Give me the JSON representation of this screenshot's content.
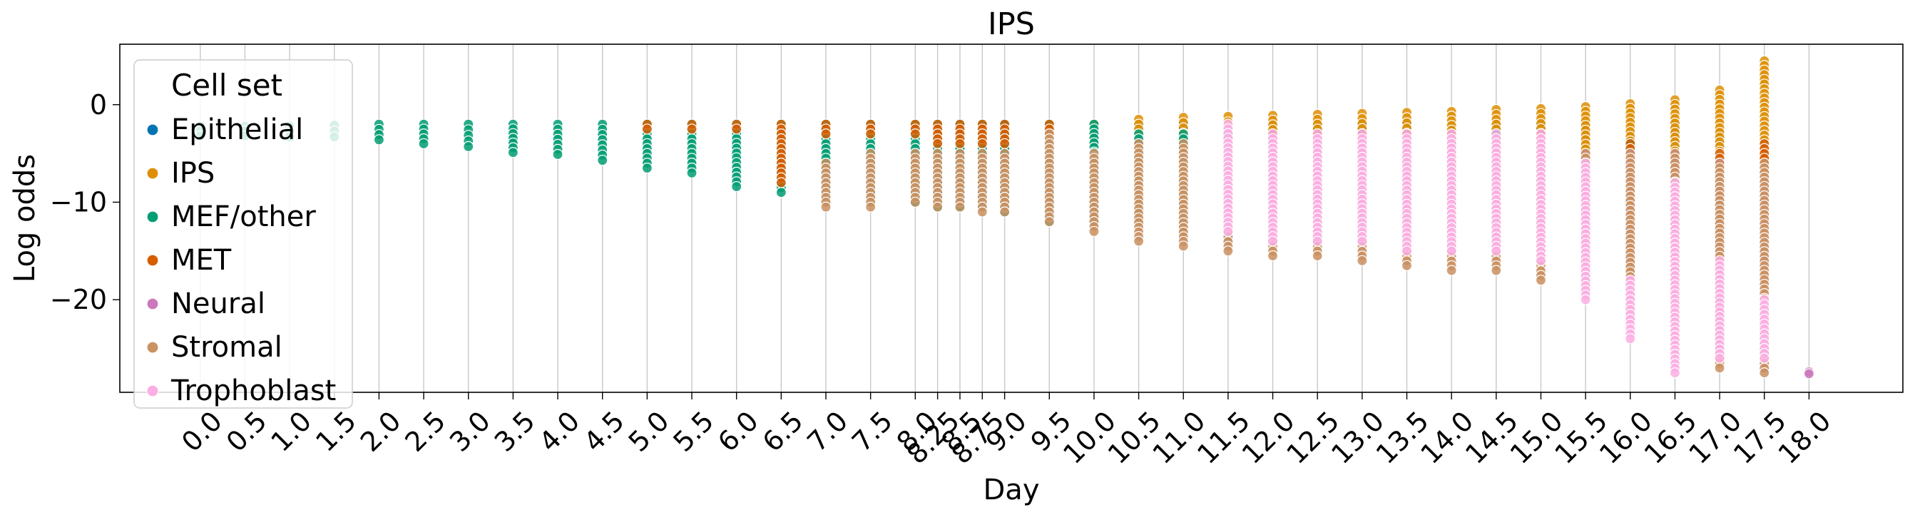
{
  "chart_data": {
    "type": "scatter",
    "title": "IPS",
    "xlabel": "Day",
    "ylabel": "Log odds",
    "xlim": [
      -0.9,
      19.05
    ],
    "ylim": [
      -29.5,
      6.2
    ],
    "grid": "vertical",
    "x_ticks": [
      0.0,
      0.5,
      1.0,
      1.5,
      2.0,
      2.5,
      3.0,
      3.5,
      4.0,
      4.5,
      5.0,
      5.5,
      6.0,
      6.5,
      7.0,
      7.5,
      8.0,
      8.25,
      8.5,
      8.75,
      9.0,
      9.5,
      10.0,
      10.5,
      11.0,
      11.5,
      12.0,
      12.5,
      13.0,
      13.5,
      14.0,
      14.5,
      15.0,
      15.5,
      16.0,
      16.5,
      17.0,
      17.5,
      18.0
    ],
    "x_tick_labels": [
      "0.0",
      "0.5",
      "1.0",
      "1.5",
      "2.0",
      "2.5",
      "3.0",
      "3.5",
      "4.0",
      "4.5",
      "5.0",
      "5.5",
      "6.0",
      "6.5",
      "7.0",
      "7.5",
      "8.0",
      "8.25",
      "8.5",
      "8.75",
      "9.0",
      "9.5",
      "10.0",
      "10.5",
      "11.0",
      "11.5",
      "12.0",
      "12.5",
      "13.0",
      "13.5",
      "14.0",
      "14.5",
      "15.0",
      "15.5",
      "16.0",
      "16.5",
      "17.0",
      "17.5",
      "18.0"
    ],
    "y_ticks": [
      0,
      -10,
      -20
    ],
    "y_tick_labels": [
      "0",
      "−10",
      "−20"
    ],
    "legend": {
      "title": "Cell set",
      "placement": "upper-left",
      "entries": [
        "Epithelial",
        "IPS",
        "MEF/other",
        "MET",
        "Neural",
        "Stromal",
        "Trophoblast"
      ]
    },
    "series": [
      {
        "name": "Epithelial",
        "color": "#0173b2",
        "ranges": [
          [
            6.5,
            -4,
            -3
          ],
          [
            8.5,
            -8,
            -3
          ],
          [
            9.0,
            -10,
            -2
          ],
          [
            9.5,
            -10,
            -3
          ],
          [
            10.0,
            -12,
            -2
          ],
          [
            10.5,
            -12,
            -2
          ],
          [
            11.0,
            -13,
            -2
          ],
          [
            11.5,
            -14,
            -2
          ],
          [
            12.0,
            -14,
            -2
          ],
          [
            12.5,
            -14,
            -2
          ],
          [
            13.0,
            -14,
            -2
          ],
          [
            13.5,
            -15,
            -2
          ],
          [
            14.0,
            -15,
            -2
          ],
          [
            14.5,
            -15,
            -2
          ],
          [
            15.0,
            -16,
            -2
          ],
          [
            15.5,
            -18,
            -2
          ],
          [
            16.0,
            -20,
            -3
          ],
          [
            16.5,
            -22,
            -2
          ],
          [
            17.0,
            -26,
            -3
          ],
          [
            17.5,
            -27,
            -4
          ]
        ]
      },
      {
        "name": "IPS",
        "color": "#de8f05",
        "ranges": [
          [
            9.5,
            -5,
            -2
          ],
          [
            10.0,
            -4,
            -2
          ],
          [
            10.5,
            -4,
            -1.5
          ],
          [
            11.0,
            -4,
            -1.3
          ],
          [
            11.5,
            -4,
            -1.2
          ],
          [
            12.0,
            -4,
            -1.1
          ],
          [
            12.5,
            -4,
            -1
          ],
          [
            13.0,
            -4,
            -0.9
          ],
          [
            13.5,
            -4,
            -0.8
          ],
          [
            14.0,
            -5,
            -0.7
          ],
          [
            14.5,
            -4,
            -0.5
          ],
          [
            15.0,
            -5,
            -0.4
          ],
          [
            15.5,
            -6,
            -0.2
          ],
          [
            16.0,
            -8,
            0.1
          ],
          [
            16.5,
            -10,
            0.5
          ],
          [
            17.0,
            -12,
            1.5
          ],
          [
            17.5,
            -16,
            4.5
          ]
        ]
      },
      {
        "name": "MEF/other",
        "color": "#029e73",
        "ranges": [
          [
            0.0,
            -3.2,
            -2.2
          ],
          [
            0.5,
            -3.2,
            -2.2
          ],
          [
            1.0,
            -3.3,
            -2.2
          ],
          [
            1.5,
            -3.3,
            -2.1
          ],
          [
            2.0,
            -3.6,
            -2
          ],
          [
            2.5,
            -4,
            -2
          ],
          [
            3.0,
            -4.3,
            -2
          ],
          [
            3.5,
            -4.9,
            -2
          ],
          [
            4.0,
            -5.1,
            -2
          ],
          [
            4.5,
            -5.7,
            -2
          ],
          [
            5.0,
            -6.5,
            -2
          ],
          [
            5.5,
            -7,
            -2
          ],
          [
            6.0,
            -8.4,
            -2
          ],
          [
            6.5,
            -9,
            -2
          ],
          [
            7.0,
            -10,
            -2
          ],
          [
            7.5,
            -10,
            -2
          ],
          [
            8.0,
            -10,
            -2
          ],
          [
            8.25,
            -10.5,
            -2
          ],
          [
            8.5,
            -10.5,
            -2
          ],
          [
            8.75,
            -10.5,
            -2
          ],
          [
            9.0,
            -11,
            -2
          ],
          [
            9.5,
            -12,
            -2
          ],
          [
            10.0,
            -12,
            -2
          ],
          [
            10.5,
            -12,
            -3
          ],
          [
            11.0,
            -12,
            -3
          ],
          [
            11.5,
            -13,
            -3
          ],
          [
            12.0,
            -13,
            -3
          ],
          [
            12.5,
            -13,
            -3
          ],
          [
            13.0,
            -13,
            -3
          ],
          [
            13.5,
            -14,
            -3
          ],
          [
            14.0,
            -14,
            -3
          ],
          [
            14.5,
            -14,
            -3
          ],
          [
            15.0,
            -14,
            -3
          ],
          [
            15.5,
            -13,
            -8
          ],
          [
            16.0,
            -18,
            -4
          ],
          [
            16.5,
            -20,
            -6
          ],
          [
            17.0,
            -25,
            -10
          ],
          [
            17.5,
            -24,
            -11
          ]
        ]
      },
      {
        "name": "MET",
        "color": "#d55e00",
        "ranges": [
          [
            5.0,
            -2.5,
            -2
          ],
          [
            5.5,
            -2.5,
            -2
          ],
          [
            6.0,
            -2.5,
            -2
          ],
          [
            6.5,
            -8,
            -2
          ],
          [
            7.0,
            -3,
            -2
          ],
          [
            7.5,
            -3,
            -2
          ],
          [
            8.0,
            -3,
            -2
          ],
          [
            8.25,
            -4,
            -2
          ],
          [
            8.5,
            -4,
            -2
          ],
          [
            8.75,
            -4,
            -2
          ],
          [
            9.0,
            -4,
            -2
          ],
          [
            9.5,
            -3,
            -2
          ],
          [
            12.0,
            -12,
            -3
          ],
          [
            12.5,
            -12,
            -3
          ],
          [
            13.0,
            -12,
            -3
          ],
          [
            13.5,
            -13,
            -3
          ],
          [
            14.0,
            -12,
            -3
          ],
          [
            15.0,
            -10,
            -3
          ],
          [
            16.0,
            -12,
            -4
          ],
          [
            17.0,
            -14,
            -5
          ],
          [
            17.5,
            -12,
            -4
          ]
        ]
      },
      {
        "name": "Neural",
        "color": "#cc78bc",
        "ranges": [
          [
            11.5,
            -12,
            -4
          ],
          [
            12.0,
            -12,
            -4
          ],
          [
            12.5,
            -12,
            -4
          ],
          [
            13.0,
            -12,
            -4
          ],
          [
            14.0,
            -12,
            -4
          ],
          [
            14.5,
            -13,
            -4
          ],
          [
            15.0,
            -15,
            -4
          ],
          [
            15.5,
            -17,
            -5
          ],
          [
            16.0,
            -20,
            -5
          ],
          [
            16.5,
            -24,
            -5
          ],
          [
            17.0,
            -26,
            -6
          ],
          [
            17.5,
            -27,
            -8
          ],
          [
            18.0,
            -27.6,
            -27.4
          ]
        ]
      },
      {
        "name": "Stromal",
        "color": "#ca9161",
        "ranges": [
          [
            7.0,
            -10.5,
            -6
          ],
          [
            7.5,
            -10.5,
            -5
          ],
          [
            8.0,
            -10,
            -5
          ],
          [
            8.25,
            -10.5,
            -5
          ],
          [
            8.5,
            -10.5,
            -5
          ],
          [
            8.75,
            -11,
            -5
          ],
          [
            9.0,
            -11,
            -5
          ],
          [
            9.5,
            -12,
            -3
          ],
          [
            10.0,
            -13,
            -5
          ],
          [
            10.5,
            -14,
            -4
          ],
          [
            11.0,
            -14.5,
            -4
          ],
          [
            11.5,
            -15,
            -4
          ],
          [
            12.0,
            -15.5,
            -4
          ],
          [
            12.5,
            -15.5,
            -4
          ],
          [
            13.0,
            -16,
            -4
          ],
          [
            13.5,
            -16.5,
            -4
          ],
          [
            14.0,
            -17,
            -4
          ],
          [
            14.5,
            -17,
            -4
          ],
          [
            15.0,
            -18,
            -4
          ],
          [
            15.5,
            -19,
            -5
          ],
          [
            16.0,
            -22,
            -5
          ],
          [
            16.5,
            -24,
            -5
          ],
          [
            17.0,
            -27,
            -6
          ],
          [
            17.5,
            -27.5,
            -6
          ]
        ]
      },
      {
        "name": "Trophoblast",
        "color": "#fbafe4",
        "ranges": [
          [
            11.5,
            -13,
            -2
          ],
          [
            12.0,
            -14,
            -3
          ],
          [
            12.5,
            -14,
            -3
          ],
          [
            13.0,
            -14,
            -3
          ],
          [
            13.5,
            -15,
            -3
          ],
          [
            14.0,
            -15,
            -3
          ],
          [
            14.5,
            -15,
            -3
          ],
          [
            15.0,
            -16,
            -3
          ],
          [
            15.5,
            -20,
            -6
          ],
          [
            16.0,
            -24,
            -18
          ],
          [
            16.5,
            -27.5,
            -8
          ],
          [
            17.0,
            -26,
            -16
          ],
          [
            17.5,
            -26,
            -20
          ]
        ]
      }
    ]
  }
}
